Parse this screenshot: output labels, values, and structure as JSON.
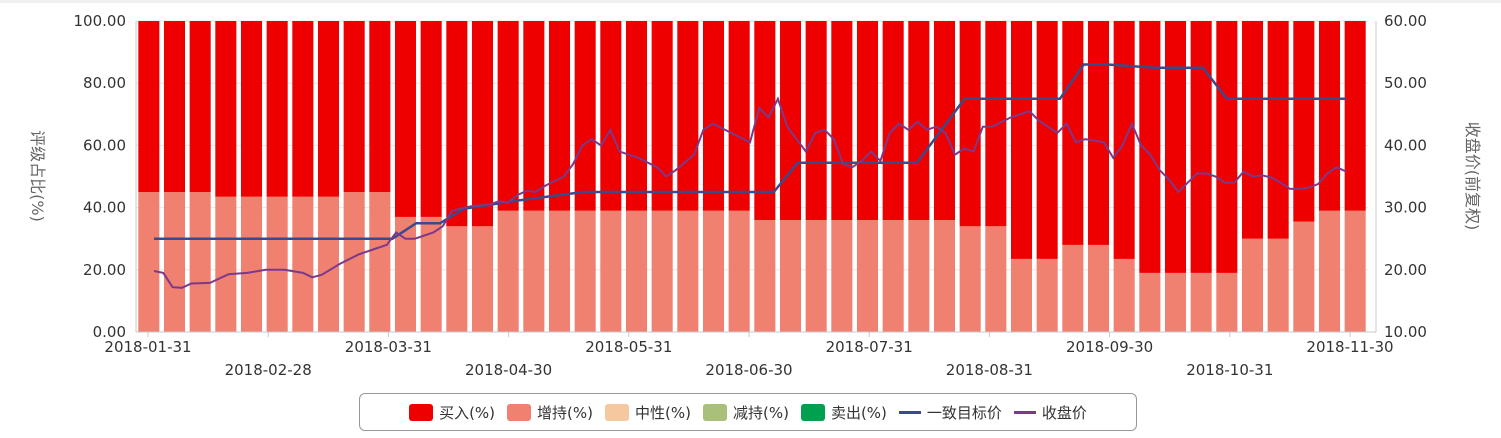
{
  "chart_data": {
    "type": "bar",
    "stacked": true,
    "bar_months": [
      "2018-01",
      "2018-02",
      "2018-03",
      "2018-04",
      "2018-05",
      "2018-06",
      "2018-07",
      "2018-08",
      "2018-09",
      "2018-10",
      "2018-11"
    ],
    "x_ticks_upper": [
      "2018-01-31",
      "2018-03-31",
      "2018-05-31",
      "2018-07-31",
      "2018-09-30",
      "2018-11-30"
    ],
    "x_ticks_lower": [
      "2018-02-28",
      "2018-04-30",
      "2018-06-30",
      "2018-08-31",
      "2018-10-31"
    ],
    "y_left": {
      "label": "评级占比(%)",
      "min": 0,
      "max": 100,
      "ticks": [
        "0.00",
        "20.00",
        "40.00",
        "60.00",
        "80.00",
        "100.00"
      ]
    },
    "y_right": {
      "label": "收盘价(前复权)",
      "min": 10,
      "max": 60,
      "ticks": [
        "10.00",
        "20.00",
        "30.00",
        "40.00",
        "50.00",
        "60.00"
      ]
    },
    "bar_series": [
      {
        "name": "买入(%)",
        "color": "#ee0000",
        "values": [
          55,
          55,
          55,
          56.5,
          56.5,
          56.5,
          56.5,
          56.5,
          55,
          55,
          63,
          63,
          66,
          66,
          61,
          61,
          61,
          61,
          61,
          61,
          61,
          61,
          61,
          61,
          64,
          64,
          64,
          64,
          64,
          64,
          64,
          64,
          66,
          66,
          76.5,
          76.5,
          72,
          72,
          76.5,
          81,
          81,
          81,
          81,
          70,
          70,
          64.5,
          61,
          61
        ]
      },
      {
        "name": "增持(%)",
        "color": "#f08070",
        "values": [
          45,
          45,
          45,
          43.5,
          43.5,
          43.5,
          43.5,
          43.5,
          45,
          45,
          37,
          37,
          34,
          34,
          39,
          39,
          39,
          39,
          39,
          39,
          39,
          39,
          39,
          39,
          36,
          36,
          36,
          36,
          36,
          36,
          36,
          36,
          34,
          34,
          23.5,
          23.5,
          28,
          28,
          23.5,
          19,
          19,
          19,
          19,
          30,
          30,
          35.5,
          39,
          39
        ]
      },
      {
        "name": "中性(%)",
        "color": "#f5c8a0",
        "values": []
      },
      {
        "name": "减持(%)",
        "color": "#a8c07a",
        "values": []
      },
      {
        "name": "卖出(%)",
        "color": "#00a050",
        "values": []
      }
    ],
    "line_series": [
      {
        "name": "一致目标价",
        "color": "#3a4a8a",
        "points": [
          [
            0,
            25
          ],
          [
            10,
            25
          ],
          [
            11,
            27.5
          ],
          [
            12,
            27.5
          ],
          [
            13,
            29.8
          ],
          [
            15,
            31
          ],
          [
            18,
            32.5
          ],
          [
            20,
            32.5
          ],
          [
            26,
            32.5
          ],
          [
            27,
            37.2
          ],
          [
            31,
            37.2
          ],
          [
            32,
            37.2
          ],
          [
            34,
            47.5
          ],
          [
            38,
            47.5
          ],
          [
            39,
            53
          ],
          [
            40,
            53
          ],
          [
            42,
            52.5
          ],
          [
            44,
            52.5
          ],
          [
            45,
            47.5
          ],
          [
            50,
            47.5
          ]
        ]
      },
      {
        "name": "收盘价",
        "color": "#7a3a8a",
        "points": [
          [
            0,
            19.8
          ],
          [
            0.5,
            19.5
          ],
          [
            1,
            17.2
          ],
          [
            1.5,
            17.1
          ],
          [
            2,
            17.8
          ],
          [
            3,
            17.9
          ],
          [
            4,
            19.3
          ],
          [
            5,
            19.5
          ],
          [
            6,
            20
          ],
          [
            7,
            20
          ],
          [
            8,
            19.5
          ],
          [
            8.5,
            18.8
          ],
          [
            9,
            19.2
          ],
          [
            10,
            21
          ],
          [
            11,
            22.5
          ],
          [
            12,
            23.5
          ],
          [
            12.5,
            24
          ],
          [
            13,
            26
          ],
          [
            13.5,
            25
          ],
          [
            14,
            25
          ],
          [
            15,
            26
          ],
          [
            15.5,
            27
          ],
          [
            16,
            29.5
          ],
          [
            17,
            30.2
          ],
          [
            18,
            30.5
          ],
          [
            18.5,
            31
          ],
          [
            19,
            30.8
          ],
          [
            19.5,
            32
          ],
          [
            20,
            32.7
          ],
          [
            20.5,
            32.5
          ],
          [
            21,
            33.5
          ],
          [
            22,
            35
          ],
          [
            22.5,
            37
          ],
          [
            23,
            40
          ],
          [
            23.5,
            41
          ],
          [
            24,
            40
          ],
          [
            24.5,
            42.5
          ],
          [
            25,
            39
          ],
          [
            26,
            38
          ],
          [
            27,
            36.5
          ],
          [
            27.5,
            35
          ],
          [
            28,
            36
          ],
          [
            29,
            38.5
          ],
          [
            29.5,
            42.5
          ],
          [
            30,
            43.5
          ],
          [
            31,
            42
          ],
          [
            32,
            40.5
          ],
          [
            32.5,
            46
          ],
          [
            33,
            44.5
          ],
          [
            33.5,
            47.5
          ],
          [
            34,
            43
          ],
          [
            34.5,
            41
          ],
          [
            35,
            39
          ],
          [
            35.5,
            42
          ],
          [
            36,
            42.5
          ],
          [
            36.5,
            41
          ],
          [
            37,
            37
          ],
          [
            37.5,
            36.5
          ],
          [
            38,
            37.5
          ],
          [
            38.5,
            39
          ],
          [
            39,
            37.5
          ],
          [
            39.5,
            42
          ],
          [
            40,
            43.5
          ],
          [
            40.5,
            42.5
          ],
          [
            41,
            43.8
          ],
          [
            41.5,
            42.5
          ],
          [
            42,
            43
          ],
          [
            42.5,
            42
          ],
          [
            43,
            38.5
          ],
          [
            43.5,
            39.5
          ],
          [
            44,
            39
          ],
          [
            44.5,
            43
          ],
          [
            45,
            43
          ],
          [
            46,
            44.5
          ],
          [
            47,
            45.5
          ],
          [
            47.5,
            44
          ],
          [
            48,
            43
          ],
          [
            48.5,
            42
          ],
          [
            49,
            43.5
          ],
          [
            49.5,
            40.5
          ],
          [
            50,
            41
          ],
          [
            51,
            40.5
          ],
          [
            51.5,
            38
          ],
          [
            52,
            40
          ],
          [
            52.5,
            43.5
          ],
          [
            53,
            40
          ],
          [
            53.5,
            38.5
          ],
          [
            54,
            36
          ],
          [
            54.5,
            34.5
          ],
          [
            55,
            32.5
          ],
          [
            55.5,
            34
          ],
          [
            56,
            35.5
          ],
          [
            56.5,
            35.5
          ],
          [
            57,
            35
          ],
          [
            57.5,
            34
          ],
          [
            58,
            34
          ],
          [
            58.5,
            35.8
          ],
          [
            59,
            35
          ],
          [
            59.5,
            35.2
          ],
          [
            60,
            34.8
          ],
          [
            60.5,
            34
          ],
          [
            61,
            33
          ],
          [
            61.5,
            33
          ],
          [
            62,
            33.2
          ],
          [
            62.5,
            33.8
          ],
          [
            63,
            35.5
          ],
          [
            63.5,
            36.5
          ],
          [
            64,
            35.8
          ]
        ]
      }
    ]
  },
  "legend": [
    {
      "label": "买入(%)",
      "color": "#ee0000",
      "kind": "box"
    },
    {
      "label": "增持(%)",
      "color": "#f08070",
      "kind": "box"
    },
    {
      "label": "中性(%)",
      "color": "#f5c8a0",
      "kind": "box"
    },
    {
      "label": "减持(%)",
      "color": "#a8c07a",
      "kind": "box"
    },
    {
      "label": "卖出(%)",
      "color": "#00a050",
      "kind": "box"
    },
    {
      "label": "一致目标价",
      "color": "#3a4a8a",
      "kind": "line"
    },
    {
      "label": "收盘价",
      "color": "#7a3a8a",
      "kind": "line"
    }
  ]
}
